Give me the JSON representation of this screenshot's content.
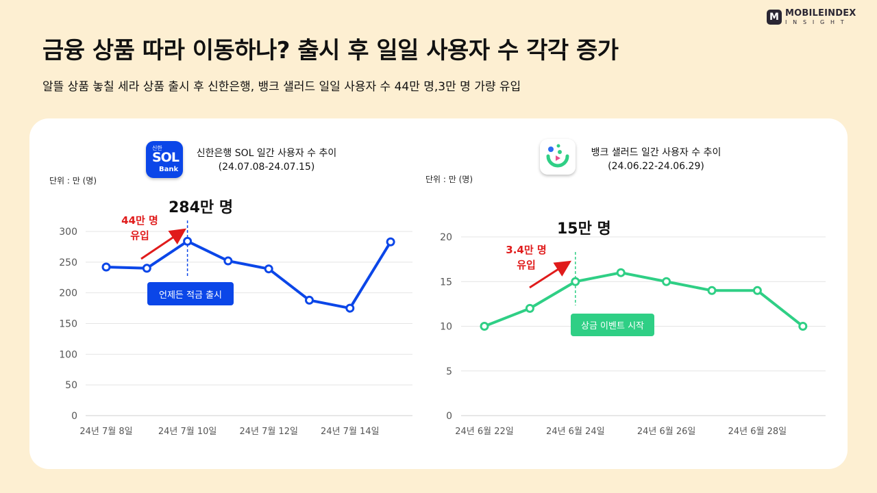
{
  "brand": {
    "logo_letter": "M",
    "name": "MOBILEINDEX",
    "sub": "INSIGHT"
  },
  "headline": "금융 상품 따라 이동하나? 출시 후 일일 사용자 수 각각 증가",
  "subheadline": "알뜰 상품 놓칠 세라 상품 출시 후 신한은행, 뱅크 샐러드 일일 사용자 수 44만 명,3만 명 가량 유입",
  "charts": [
    {
      "app_icon": {
        "name": "shinhan-sol-app-icon",
        "top": "신한",
        "mid": "SOL",
        "bottom": "Bank"
      },
      "title_line1": "신한은행 SOL 일간 사용자 수 추이",
      "title_line2": "(24.07.08-24.07.15)",
      "unit": "단위 : 만 (명)",
      "peak_label": "284만 명",
      "inflow_line1": "44만 명",
      "inflow_line2": "유입",
      "event_label": "언제든 적금 출시"
    },
    {
      "app_icon": {
        "name": "banksalad-app-icon"
      },
      "title_line1": "뱅크 샐러드 일간 사용자 수 추이",
      "title_line2": "(24.06.22-24.06.29)",
      "unit": "단위 : 만 (명)",
      "peak_label": "15만 명",
      "inflow_line1": "3.4만 명",
      "inflow_line2": "유입",
      "event_label": "상금 이벤트 시작"
    }
  ],
  "colors": {
    "sol_blue": "#0b46e8",
    "banksalad_green": "#2fcf85",
    "inflow_red": "#e01b1b",
    "background": "#fdefd2"
  },
  "chart_data": [
    {
      "type": "line",
      "x": [
        "24년 7월 8일",
        "24년 7월 9일",
        "24년 7월 10일",
        "24년 7월 11일",
        "24년 7월 12일",
        "24년 7월 13일",
        "24년 7월 14일",
        "24년 7월 15일"
      ],
      "x_tick_labels": [
        "24년 7월 8일",
        "24년 7월 10일",
        "24년 7월 12일",
        "24년 7월 14일"
      ],
      "series": [
        {
          "values": [
            242,
            240,
            284,
            252,
            239,
            188,
            175,
            283
          ]
        }
      ],
      "ylim": [
        0,
        300
      ],
      "yticks": [
        0,
        50,
        100,
        150,
        200,
        250,
        300
      ],
      "event_index": 2,
      "color": "#0b46e8",
      "grid": true
    },
    {
      "type": "line",
      "x": [
        "24년 6월 22일",
        "24년 6월 23일",
        "24년 6월 24일",
        "24년 6월 25일",
        "24년 6월 26일",
        "24년 6월 27일",
        "24년 6월 28일",
        "24년 6월 29일"
      ],
      "x_tick_labels": [
        "24년 6월 22일",
        "24년 6월 24일",
        "24년 6월 26일",
        "24년 6월 28일"
      ],
      "series": [
        {
          "values": [
            10,
            12,
            15,
            16,
            15,
            14,
            14,
            10
          ]
        }
      ],
      "ylim": [
        0,
        20
      ],
      "yticks": [
        0,
        5,
        10,
        15,
        20
      ],
      "event_index": 2,
      "color": "#2fcf85",
      "grid": true
    }
  ]
}
